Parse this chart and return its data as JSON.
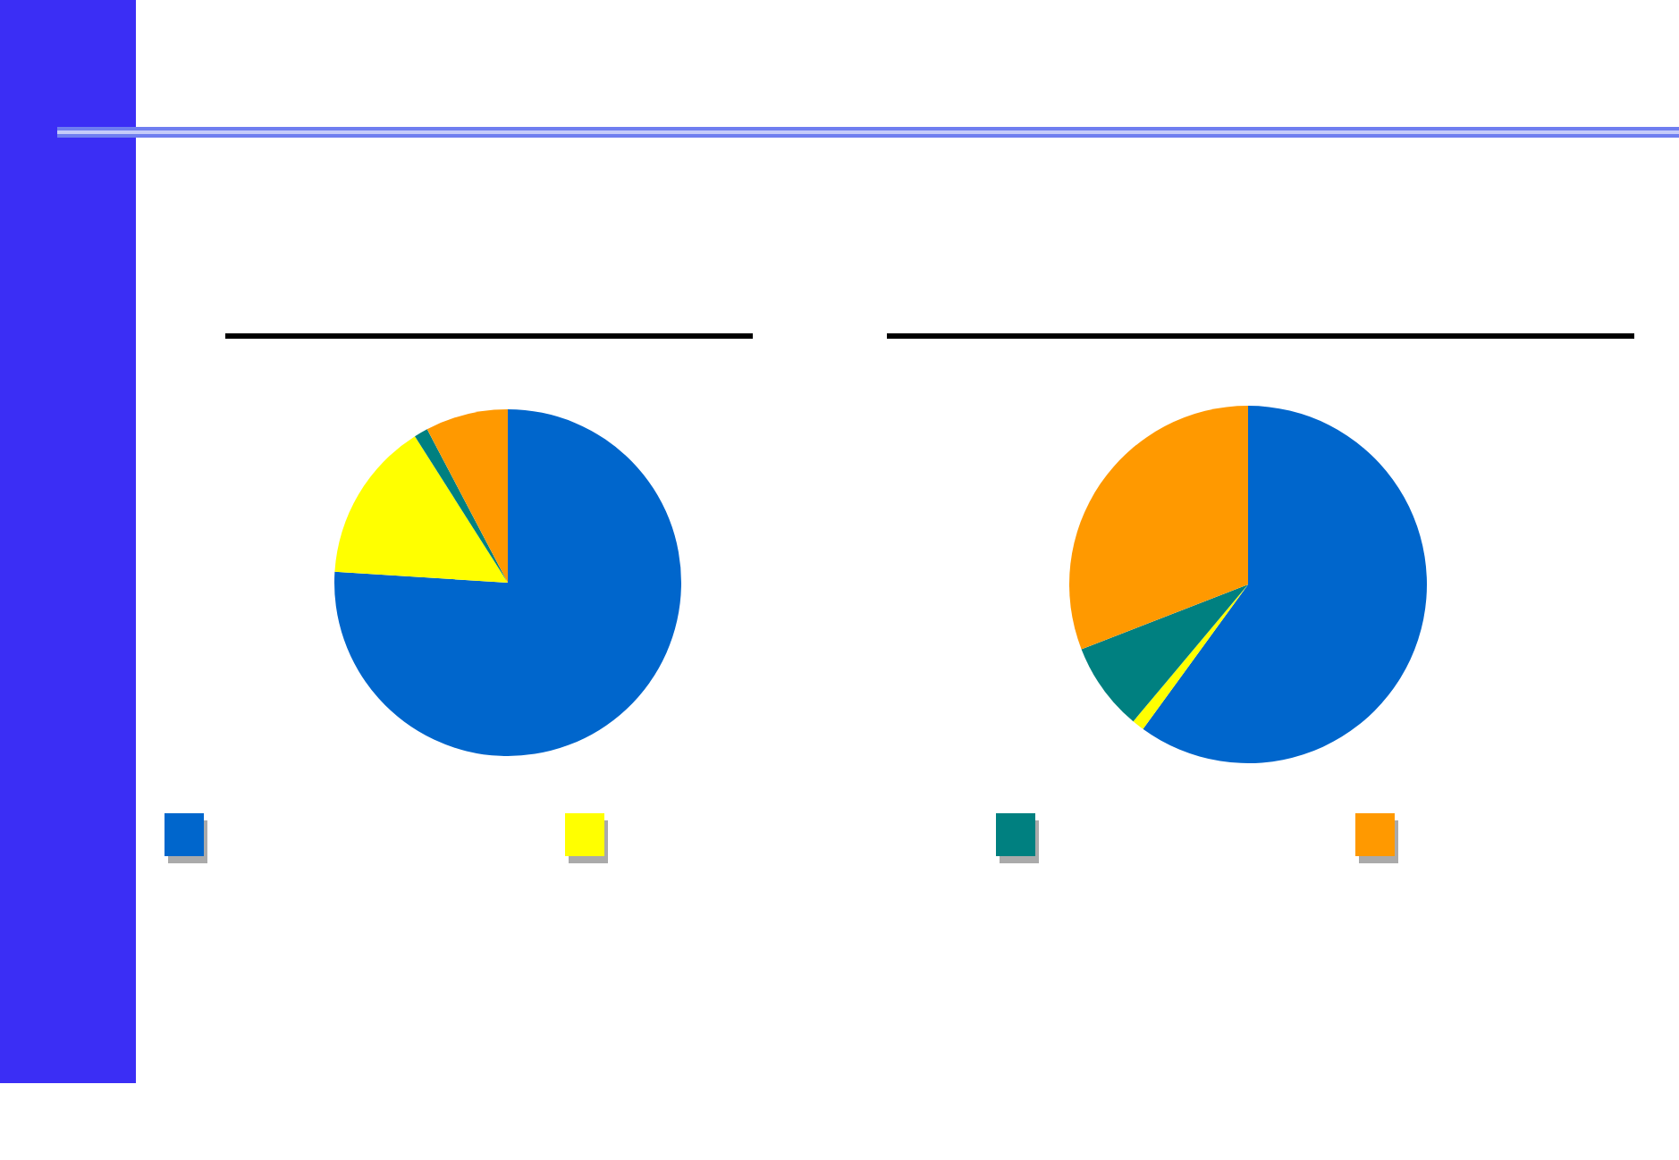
{
  "chart_data": [
    {
      "type": "pie",
      "categories": [
        null,
        null,
        null,
        null
      ],
      "values": [
        76,
        15,
        1.3,
        7.7
      ],
      "colors": [
        "#0066cc",
        "#ffff00",
        "#008080",
        "#ff9900"
      ]
    },
    {
      "type": "pie",
      "categories": [
        null,
        null,
        null,
        null
      ],
      "values": [
        60,
        1.1,
        8,
        30.9
      ],
      "colors": [
        "#0066cc",
        "#ffff00",
        "#008080",
        "#ff9900"
      ]
    }
  ]
}
